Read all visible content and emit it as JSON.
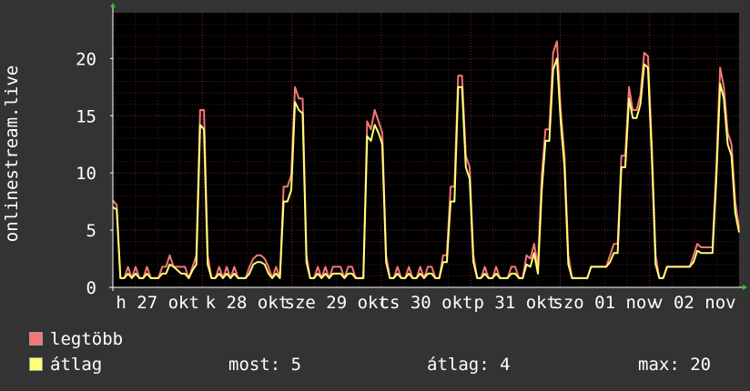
{
  "chart_data": {
    "type": "line",
    "ylabel": "onlinestream.live",
    "ylim": [
      0,
      24
    ],
    "yticks": [
      0,
      5,
      10,
      15,
      20
    ],
    "grid": true,
    "xlim": [
      0,
      7
    ],
    "x_tick_labels": [
      "h 27 okt",
      "k 28 okt",
      "sze 29 okt",
      "cs 30 okt",
      "p 31 okt",
      "szo 01 nov",
      "v 02 nov"
    ],
    "colors": {
      "background": "#333333",
      "plot_bg": "#000000",
      "grid": "#4a1a1a",
      "axis": "#ffffff",
      "arrow": "#22cc22"
    },
    "series": [
      {
        "name": "legtöbb",
        "color": "#f77777",
        "values": [
          7.6,
          7.2,
          0.8,
          0.8,
          1.8,
          0.8,
          1.8,
          0.8,
          0.8,
          1.8,
          0.8,
          0.8,
          0.8,
          1.8,
          1.8,
          2.8,
          1.8,
          1.8,
          1.8,
          1.8,
          0.8,
          1.8,
          2.8,
          15.5,
          15.5,
          2.8,
          0.8,
          0.8,
          1.8,
          0.8,
          1.8,
          0.8,
          1.8,
          0.8,
          0.8,
          0.8,
          1.8,
          2.5,
          2.8,
          2.8,
          2.5,
          1.8,
          0.8,
          1.8,
          0.8,
          8.8,
          8.8,
          9.8,
          17.5,
          16.5,
          16.5,
          2.8,
          0.8,
          0.8,
          1.8,
          0.8,
          1.8,
          0.8,
          1.8,
          1.8,
          1.8,
          0.8,
          1.8,
          1.8,
          0.8,
          0.8,
          0.8,
          14.5,
          13.8,
          15.5,
          14.5,
          13.5,
          2.8,
          0.8,
          0.8,
          1.8,
          0.8,
          0.8,
          1.8,
          0.8,
          0.8,
          1.8,
          0.8,
          1.8,
          1.8,
          0.8,
          0.8,
          2.8,
          2.8,
          8.8,
          8.8,
          18.5,
          18.5,
          11.5,
          10.5,
          2.8,
          0.8,
          0.8,
          1.8,
          0.8,
          0.8,
          1.8,
          0.8,
          0.8,
          0.8,
          1.8,
          1.8,
          0.8,
          0.8,
          2.8,
          2.5,
          3.8,
          1.8,
          9.8,
          13.8,
          13.8,
          20.5,
          21.5,
          15.5,
          11.5,
          2.8,
          0.8,
          0.8,
          0.8,
          0.8,
          0.8,
          1.8,
          1.8,
          1.8,
          1.8,
          1.8,
          2.8,
          3.8,
          3.8,
          11.5,
          11.5,
          17.5,
          15.5,
          15.5,
          16.8,
          20.5,
          20.2,
          12.5,
          2.8,
          0.8,
          0.8,
          1.8,
          1.8,
          1.8,
          1.8,
          1.8,
          1.8,
          1.8,
          2.8,
          3.8,
          3.5,
          3.5,
          3.5,
          3.5,
          10.5,
          19.2,
          17.5,
          13.5,
          12.5,
          7.5,
          5.2
        ],
        "y_unit": "count"
      },
      {
        "name": "átlag",
        "color": "#ffff77",
        "values": [
          7.0,
          6.8,
          0.8,
          0.8,
          1.2,
          0.8,
          1.2,
          0.8,
          0.8,
          1.2,
          0.8,
          0.8,
          0.8,
          1.2,
          1.2,
          2.0,
          1.8,
          1.5,
          1.2,
          1.2,
          0.8,
          1.5,
          2.0,
          14.2,
          13.8,
          2.0,
          0.8,
          0.8,
          1.2,
          0.8,
          1.2,
          0.8,
          1.2,
          0.8,
          0.8,
          0.8,
          1.2,
          2.0,
          2.2,
          2.2,
          2.0,
          1.2,
          0.8,
          1.2,
          0.8,
          7.5,
          7.5,
          8.5,
          16.2,
          15.5,
          15.2,
          2.2,
          0.8,
          0.8,
          1.2,
          0.8,
          1.2,
          0.8,
          1.2,
          1.2,
          1.2,
          0.8,
          1.2,
          1.2,
          0.8,
          0.8,
          0.8,
          13.2,
          12.8,
          14.2,
          13.5,
          12.5,
          2.2,
          0.8,
          0.8,
          1.2,
          0.8,
          0.8,
          1.2,
          0.8,
          0.8,
          1.2,
          0.8,
          1.2,
          1.2,
          0.8,
          0.8,
          2.2,
          2.2,
          7.5,
          7.5,
          17.5,
          17.5,
          10.5,
          9.5,
          2.2,
          0.8,
          0.8,
          1.2,
          0.8,
          0.8,
          1.2,
          0.8,
          0.8,
          0.8,
          1.2,
          1.2,
          0.8,
          0.8,
          2.0,
          1.8,
          3.0,
          1.2,
          8.5,
          12.8,
          12.8,
          19.0,
          20.0,
          14.5,
          10.5,
          2.0,
          0.8,
          0.8,
          0.8,
          0.8,
          0.8,
          1.8,
          1.8,
          1.8,
          1.8,
          1.8,
          2.2,
          3.0,
          3.0,
          10.5,
          10.5,
          16.5,
          14.8,
          14.8,
          16.0,
          19.5,
          19.2,
          11.5,
          2.0,
          0.8,
          0.8,
          1.8,
          1.8,
          1.8,
          1.8,
          1.8,
          1.8,
          1.8,
          2.2,
          3.2,
          3.0,
          3.0,
          3.0,
          3.0,
          9.5,
          17.8,
          16.5,
          12.5,
          11.5,
          6.5,
          4.8
        ],
        "y_unit": "count"
      }
    ]
  },
  "legend": [
    {
      "label": "legtöbb",
      "color": "#f77777"
    },
    {
      "label": "átlag",
      "color": "#ffff77"
    }
  ],
  "stats": {
    "now": "most: 5",
    "avg": "átlag: 4",
    "max": "max: 20"
  }
}
